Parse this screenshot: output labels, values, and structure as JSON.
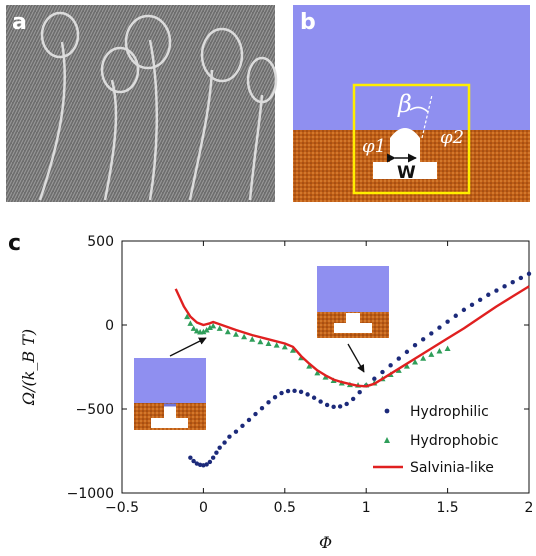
{
  "panels": {
    "a": {
      "letter": "a"
    },
    "b": {
      "letter": "b",
      "width_label": "W",
      "beta_label": "β",
      "phi1_label": "φ1",
      "phi2_label": "φ2"
    },
    "c": {
      "letter": "c"
    }
  },
  "colors": {
    "hydrophilic": "#1c2a7a",
    "hydrophobic": "#2f9e5a",
    "salvinia": "#e02020",
    "vapor": "#8f8ff0",
    "liquid": "#c0631a",
    "highlight": "#ffee00"
  },
  "chart_data": {
    "type": "scatter",
    "xlabel": "Φ",
    "ylabel": "Ω/(k_B T)",
    "xlim": [
      -0.5,
      2
    ],
    "ylim": [
      -1000,
      500
    ],
    "xticks": [
      "−0.5",
      "0",
      "0.5",
      "1",
      "1.5",
      "2"
    ],
    "yticks": [
      "500",
      "0",
      "−500",
      "−1000"
    ],
    "xtick_values": [
      -0.5,
      0,
      0.5,
      1,
      1.5,
      2
    ],
    "ytick_values": [
      500,
      0,
      -500,
      -1000
    ],
    "legend_position": "lower-right",
    "series": [
      {
        "name": "Hydrophilic",
        "style": "dots",
        "points": [
          [
            -0.08,
            -790
          ],
          [
            -0.06,
            -810
          ],
          [
            -0.04,
            -825
          ],
          [
            -0.02,
            -832
          ],
          [
            0.0,
            -835
          ],
          [
            0.02,
            -830
          ],
          [
            0.04,
            -815
          ],
          [
            0.06,
            -790
          ],
          [
            0.08,
            -760
          ],
          [
            0.1,
            -730
          ],
          [
            0.13,
            -700
          ],
          [
            0.16,
            -665
          ],
          [
            0.2,
            -635
          ],
          [
            0.24,
            -600
          ],
          [
            0.28,
            -565
          ],
          [
            0.32,
            -530
          ],
          [
            0.36,
            -495
          ],
          [
            0.4,
            -460
          ],
          [
            0.44,
            -430
          ],
          [
            0.48,
            -405
          ],
          [
            0.52,
            -393
          ],
          [
            0.56,
            -392
          ],
          [
            0.6,
            -398
          ],
          [
            0.64,
            -413
          ],
          [
            0.68,
            -433
          ],
          [
            0.72,
            -456
          ],
          [
            0.76,
            -476
          ],
          [
            0.8,
            -487
          ],
          [
            0.84,
            -485
          ],
          [
            0.88,
            -470
          ],
          [
            0.92,
            -440
          ],
          [
            0.96,
            -400
          ],
          [
            1.0,
            -360
          ],
          [
            1.05,
            -320
          ],
          [
            1.1,
            -280
          ],
          [
            1.15,
            -240
          ],
          [
            1.2,
            -200
          ],
          [
            1.25,
            -160
          ],
          [
            1.3,
            -120
          ],
          [
            1.35,
            -85
          ],
          [
            1.4,
            -50
          ],
          [
            1.45,
            -15
          ],
          [
            1.5,
            20
          ],
          [
            1.55,
            55
          ],
          [
            1.6,
            90
          ],
          [
            1.65,
            120
          ],
          [
            1.7,
            150
          ],
          [
            1.75,
            180
          ],
          [
            1.8,
            205
          ],
          [
            1.85,
            230
          ],
          [
            1.9,
            255
          ],
          [
            1.95,
            280
          ],
          [
            2.0,
            305
          ]
        ]
      },
      {
        "name": "Hydrophobic",
        "style": "triangles",
        "points": [
          [
            -0.1,
            50
          ],
          [
            -0.08,
            10
          ],
          [
            -0.06,
            -20
          ],
          [
            -0.04,
            -35
          ],
          [
            -0.02,
            -42
          ],
          [
            0.0,
            -40
          ],
          [
            0.02,
            -30
          ],
          [
            0.04,
            -15
          ],
          [
            0.06,
            -5
          ],
          [
            0.1,
            -20
          ],
          [
            0.15,
            -40
          ],
          [
            0.2,
            -55
          ],
          [
            0.25,
            -70
          ],
          [
            0.3,
            -85
          ],
          [
            0.35,
            -100
          ],
          [
            0.4,
            -110
          ],
          [
            0.45,
            -120
          ],
          [
            0.5,
            -130
          ],
          [
            0.55,
            -150
          ],
          [
            0.6,
            -195
          ],
          [
            0.65,
            -245
          ],
          [
            0.7,
            -285
          ],
          [
            0.75,
            -310
          ],
          [
            0.8,
            -330
          ],
          [
            0.85,
            -345
          ],
          [
            0.9,
            -355
          ],
          [
            0.95,
            -358
          ],
          [
            1.0,
            -357
          ],
          [
            1.05,
            -345
          ],
          [
            1.1,
            -320
          ],
          [
            1.15,
            -295
          ],
          [
            1.2,
            -270
          ],
          [
            1.25,
            -245
          ],
          [
            1.3,
            -220
          ],
          [
            1.35,
            -198
          ],
          [
            1.4,
            -175
          ],
          [
            1.45,
            -155
          ],
          [
            1.5,
            -140
          ]
        ]
      },
      {
        "name": "Salvinia-like",
        "style": "line",
        "points": [
          [
            -0.17,
            215
          ],
          [
            -0.12,
            110
          ],
          [
            -0.08,
            50
          ],
          [
            -0.04,
            15
          ],
          [
            0.0,
            0
          ],
          [
            0.04,
            10
          ],
          [
            0.06,
            18
          ],
          [
            0.1,
            5
          ],
          [
            0.2,
            -30
          ],
          [
            0.3,
            -60
          ],
          [
            0.4,
            -85
          ],
          [
            0.5,
            -110
          ],
          [
            0.55,
            -130
          ],
          [
            0.6,
            -185
          ],
          [
            0.65,
            -230
          ],
          [
            0.7,
            -270
          ],
          [
            0.75,
            -300
          ],
          [
            0.8,
            -325
          ],
          [
            0.85,
            -340
          ],
          [
            0.9,
            -352
          ],
          [
            0.95,
            -362
          ],
          [
            1.0,
            -365
          ],
          [
            1.05,
            -350
          ],
          [
            1.1,
            -320
          ],
          [
            1.2,
            -260
          ],
          [
            1.3,
            -200
          ],
          [
            1.4,
            -140
          ],
          [
            1.5,
            -80
          ],
          [
            1.6,
            -20
          ],
          [
            1.7,
            45
          ],
          [
            1.8,
            110
          ],
          [
            1.9,
            170
          ],
          [
            2.0,
            230
          ]
        ]
      }
    ]
  }
}
